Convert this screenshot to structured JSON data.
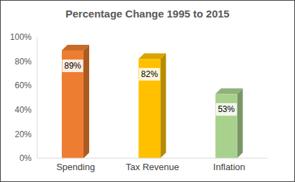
{
  "chart_data": {
    "type": "bar",
    "title": "Percentage Change 1995 to 2015",
    "categories": [
      "Spending",
      "Tax Revenue",
      "Inflation"
    ],
    "values": [
      89,
      82,
      53
    ],
    "value_labels": [
      "89%",
      "82%",
      "53%"
    ],
    "colors": [
      "#ed7d31",
      "#ffc000",
      "#a9d18e"
    ],
    "ylim": [
      0,
      100
    ],
    "yticks": [
      {
        "value": 0,
        "label": "0%"
      },
      {
        "value": 20,
        "label": "20%"
      },
      {
        "value": 40,
        "label": "40%"
      },
      {
        "value": 60,
        "label": "60%"
      },
      {
        "value": 80,
        "label": "80%"
      },
      {
        "value": 100,
        "label": "100%"
      }
    ],
    "grid": false,
    "data_labels": true
  }
}
